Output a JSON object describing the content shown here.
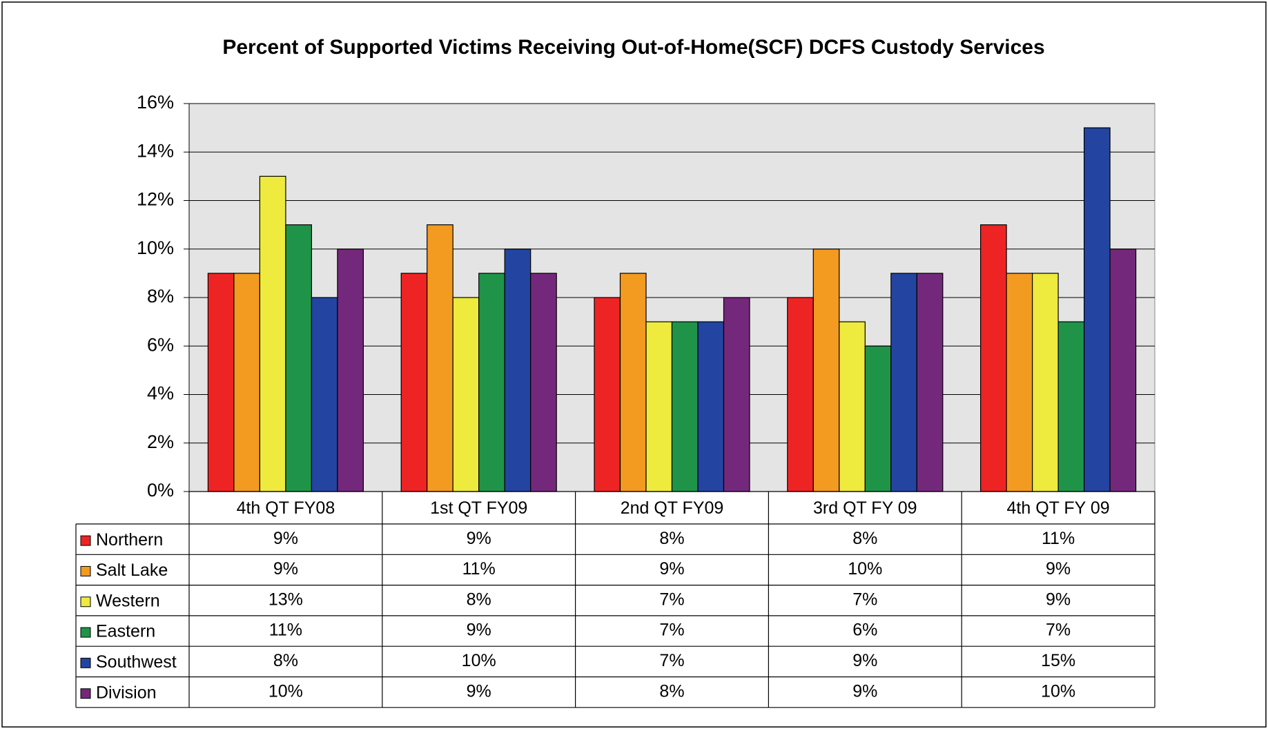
{
  "chart_data": {
    "type": "bar",
    "title": "Percent of Supported Victims Receiving Out-of-Home(SCF) DCFS Custody Services",
    "categories": [
      "4th QT FY08",
      "1st QT FY09",
      "2nd QT FY09",
      "3rd QT FY 09",
      "4th QT FY 09"
    ],
    "series": [
      {
        "name": "Northern",
        "color": "#ee2424",
        "values": [
          9,
          9,
          8,
          8,
          11
        ],
        "value_labels": [
          "9%",
          "9%",
          "8%",
          "8%",
          "11%"
        ]
      },
      {
        "name": "Salt Lake",
        "color": "#f39a20",
        "values": [
          9,
          11,
          9,
          10,
          9
        ],
        "value_labels": [
          "9%",
          "11%",
          "9%",
          "10%",
          "9%"
        ]
      },
      {
        "name": "Western",
        "color": "#eeea3e",
        "values": [
          13,
          8,
          7,
          7,
          9
        ],
        "value_labels": [
          "13%",
          "8%",
          "7%",
          "7%",
          "9%"
        ]
      },
      {
        "name": "Eastern",
        "color": "#1f9449",
        "values": [
          11,
          9,
          7,
          6,
          7
        ],
        "value_labels": [
          "11%",
          "9%",
          "7%",
          "6%",
          "7%"
        ]
      },
      {
        "name": "Southwest",
        "color": "#2345a1",
        "values": [
          8,
          10,
          7,
          9,
          15
        ],
        "value_labels": [
          "8%",
          "10%",
          "7%",
          "9%",
          "15%"
        ]
      },
      {
        "name": "Division",
        "color": "#74287b",
        "values": [
          10,
          9,
          8,
          9,
          10
        ],
        "value_labels": [
          "10%",
          "9%",
          "8%",
          "9%",
          "10%"
        ]
      }
    ],
    "ylim": [
      0,
      16
    ],
    "yticks": [
      {
        "value": 0,
        "label": "0%"
      },
      {
        "value": 2,
        "label": "2%"
      },
      {
        "value": 4,
        "label": "4%"
      },
      {
        "value": 6,
        "label": "6%"
      },
      {
        "value": 8,
        "label": "8%"
      },
      {
        "value": 10,
        "label": "10%"
      },
      {
        "value": 12,
        "label": "12%"
      },
      {
        "value": 14,
        "label": "14%"
      },
      {
        "value": 16,
        "label": "16%"
      }
    ],
    "grid": true
  }
}
